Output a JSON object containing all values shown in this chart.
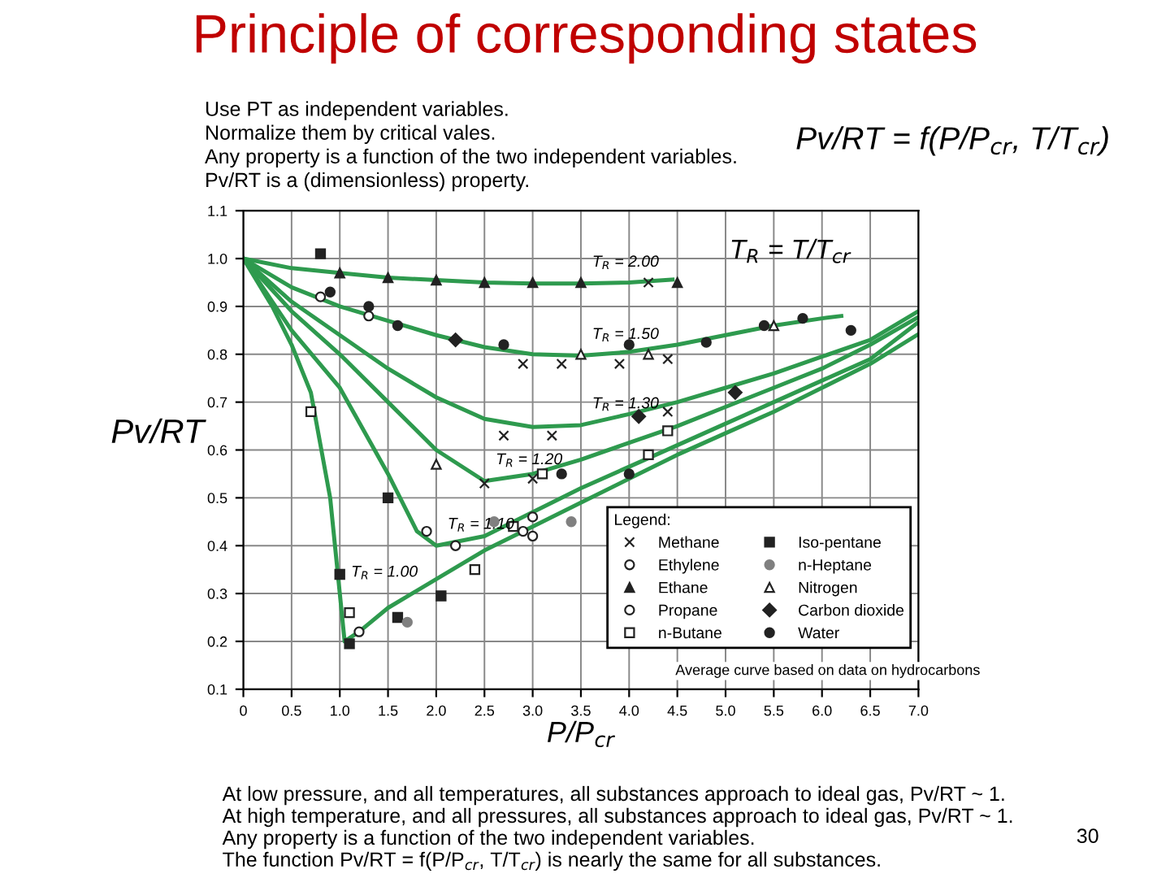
{
  "chart_data": {
    "type": "line",
    "title": "Principle of corresponding states",
    "xlabel": "P/P$_{cr}$",
    "ylabel": "Pv/RT",
    "xlim": [
      0,
      7.0
    ],
    "ylim": [
      0.1,
      1.1
    ],
    "xticks": [
      0,
      {
        "value": 0.5,
        "label": "0.5"
      },
      {
        "value": 1.0,
        "label": "1.0"
      },
      {
        "value": 1.5,
        "label": "1.5"
      },
      {
        "value": 2.0,
        "label": "2.0"
      },
      {
        "value": 2.5,
        "label": "2.5"
      },
      {
        "value": 3.0,
        "label": "3.0"
      },
      {
        "value": 3.5,
        "label": "3.5"
      },
      {
        "value": 4.0,
        "label": "4.0"
      },
      {
        "value": 4.5,
        "label": "4.5"
      },
      {
        "value": 5.0,
        "label": "5.0"
      },
      {
        "value": 5.5,
        "label": "5.5"
      },
      {
        "value": 6.0,
        "label": "6.0"
      },
      {
        "value": 6.5,
        "label": "6.5"
      },
      {
        "value": 7.0,
        "label": "7.0"
      }
    ],
    "yticks": [
      0.1,
      0.2,
      0.3,
      0.4,
      0.5,
      0.6,
      0.7,
      0.8,
      0.9,
      {
        "value": 1.0,
        "label": "1.0"
      },
      1.1
    ],
    "grid": true,
    "legend": "bottom right",
    "legend_title": "Legend:",
    "series": [
      {
        "marker": "none",
        "color": "#2e9a4e",
        "x": [
          0,
          0.5,
          1.0,
          1.5,
          2.0,
          2.5,
          3.0,
          3.5,
          4.0,
          4.45
        ],
        "values": [
          1.0,
          0.98,
          0.97,
          0.96,
          0.955,
          0.95,
          0.948,
          0.948,
          0.95,
          0.956
        ]
      },
      {
        "marker": "none",
        "color": "#2e9a4e",
        "x": [
          0,
          0.5,
          1.0,
          1.5,
          2.0,
          2.5,
          3.0,
          3.5,
          4.0,
          4.5,
          5.0,
          5.5,
          6.0,
          6.2
        ],
        "values": [
          1.0,
          0.94,
          0.9,
          0.87,
          0.84,
          0.815,
          0.8,
          0.797,
          0.805,
          0.82,
          0.84,
          0.86,
          0.875,
          0.88
        ]
      },
      {
        "marker": "none",
        "color": "#2e9a4e",
        "x": [
          0,
          0.5,
          1.0,
          1.5,
          2.0,
          2.5,
          3.0,
          3.5,
          4.0,
          4.5,
          5.0,
          5.5,
          6.0,
          6.5,
          7.0
        ],
        "values": [
          1.0,
          0.91,
          0.84,
          0.77,
          0.71,
          0.665,
          0.648,
          0.652,
          0.675,
          0.7,
          0.73,
          0.76,
          0.795,
          0.83,
          0.89
        ]
      },
      {
        "marker": "none",
        "color": "#2e9a4e",
        "x": [
          0,
          0.5,
          1.0,
          1.5,
          2.0,
          2.5,
          3.0,
          3.5,
          4.0,
          4.5,
          5.0,
          5.5,
          6.0,
          6.5,
          7.0
        ],
        "values": [
          1.0,
          0.89,
          0.8,
          0.7,
          0.6,
          0.535,
          0.55,
          0.58,
          0.615,
          0.65,
          0.69,
          0.73,
          0.77,
          0.82,
          0.878
        ]
      },
      {
        "marker": "none",
        "color": "#2e9a4e",
        "x": [
          0,
          0.5,
          1.0,
          1.5,
          1.8,
          2.0,
          2.5,
          3.0,
          3.5,
          4.0,
          4.5,
          5.0,
          5.5,
          6.0,
          6.5,
          7.0
        ],
        "values": [
          1.0,
          0.85,
          0.73,
          0.55,
          0.43,
          0.4,
          0.42,
          0.47,
          0.52,
          0.565,
          0.61,
          0.655,
          0.7,
          0.745,
          0.79,
          0.867
        ]
      },
      {
        "marker": "none",
        "color": "#2e9a4e",
        "x": [
          0,
          0.3,
          0.5,
          0.7,
          0.9,
          1.0,
          1.05,
          1.2,
          1.5,
          2.0,
          2.5,
          3.0,
          3.5,
          4.0,
          4.5,
          5.0,
          5.5,
          6.0,
          6.5,
          7.0
        ],
        "values": [
          1.0,
          0.9,
          0.82,
          0.72,
          0.5,
          0.3,
          0.2,
          0.22,
          0.27,
          0.33,
          0.39,
          0.44,
          0.49,
          0.54,
          0.59,
          0.635,
          0.68,
          0.73,
          0.78,
          0.842
        ]
      },
      {
        "type": "scatter",
        "name": "Methane",
        "marker": "cross",
        "color": "#222222",
        "x": [
          2.9,
          3.3,
          3.9,
          4.4,
          2.7,
          3.2,
          4.4,
          2.5,
          3.0,
          4.2
        ],
        "values": [
          0.78,
          0.78,
          0.78,
          0.79,
          0.63,
          0.63,
          0.68,
          0.53,
          0.54,
          0.95
        ]
      },
      {
        "type": "scatter",
        "name": "Ethylene",
        "marker": "circle_open",
        "color": "#222222",
        "x": [
          0.8,
          1.3,
          1.9,
          3.0,
          3.0
        ],
        "values": [
          0.92,
          0.88,
          0.43,
          0.46,
          0.42
        ]
      },
      {
        "type": "scatter",
        "name": "Ethane",
        "marker": "triangle",
        "color": "#222222",
        "x": [
          1.0,
          1.5,
          2.0,
          2.5,
          3.0,
          3.5,
          4.5
        ],
        "values": [
          0.97,
          0.96,
          0.955,
          0.95,
          0.95,
          0.95,
          0.95
        ]
      },
      {
        "type": "scatter",
        "name": "Propane",
        "marker": "circle_open",
        "color": "#222222",
        "x": [
          2.2,
          2.9,
          1.2
        ],
        "values": [
          0.4,
          0.43,
          0.22
        ]
      },
      {
        "type": "scatter",
        "name": "n-Butane",
        "marker": "square_open",
        "color": "#222222",
        "x": [
          0.7,
          1.1,
          2.4,
          2.8,
          3.1,
          4.4,
          4.2
        ],
        "values": [
          0.68,
          0.26,
          0.35,
          0.44,
          0.55,
          0.64,
          0.59
        ]
      },
      {
        "type": "scatter",
        "name": "Iso-pentane",
        "marker": "square",
        "color": "#222222",
        "x": [
          0.8,
          1.0,
          1.1,
          1.6,
          2.05,
          1.5
        ],
        "values": [
          1.01,
          0.34,
          0.195,
          0.25,
          0.295,
          0.5
        ]
      },
      {
        "type": "scatter",
        "name": "n-Heptane",
        "marker": "circle",
        "color": "#808080",
        "x": [
          1.7,
          2.6,
          3.4
        ],
        "values": [
          0.24,
          0.45,
          0.45
        ]
      },
      {
        "type": "scatter",
        "name": "Nitrogen",
        "marker": "triangle_open",
        "color": "#222222",
        "x": [
          3.5,
          4.2,
          5.5,
          2.0
        ],
        "values": [
          0.8,
          0.8,
          0.86,
          0.57
        ]
      },
      {
        "type": "scatter",
        "name": "Carbon dioxide",
        "marker": "diamond",
        "color": "#222222",
        "x": [
          2.2,
          4.1,
          5.1
        ],
        "values": [
          0.83,
          0.67,
          0.72
        ]
      },
      {
        "type": "scatter",
        "name": "Water",
        "marker": "circle",
        "color": "#222222",
        "x": [
          0.9,
          1.3,
          1.6,
          2.7,
          4.0,
          4.8,
          5.4,
          5.8,
          3.3,
          4.0,
          6.3
        ],
        "values": [
          0.93,
          0.9,
          0.86,
          0.82,
          0.82,
          0.825,
          0.86,
          0.875,
          0.55,
          0.55,
          0.85
        ]
      }
    ],
    "annotations": [
      {
        "text": "T$_{R}$ = 2.00",
        "x": 3.5,
        "y": 0.948
      },
      {
        "text": "T$_{R}$ = 1.50",
        "x": 3.5,
        "y": 0.797
      },
      {
        "text": "T$_{R}$ = 1.30",
        "x": 3.5,
        "y": 0.652
      },
      {
        "text": "T$_{R}$ = 1.20",
        "x": 2.5,
        "y": 0.535
      },
      {
        "text": "T$_{R}$ = 1.10",
        "x": 2.0,
        "y": 0.4
      },
      {
        "text": "T$_{R}$ = 1.00",
        "x": 1.0,
        "y": 0.3
      },
      "Use PT as independent variables.",
      "Normalize them by critical vales.",
      "Any property is a function of the two independent variables.",
      "Pv/RT is a (dimensionless) property.",
      "Pv/RT = f(P/P$_{cr}$, T/T$_{cr}$)",
      "T$_{R}$ = T/T$_{cr}$",
      "Average curve based on data on hydrocarbons",
      "At low pressure, and all temperatures, all substances approach to ideal gas, Pv/RT ~ 1.",
      "At high temperature, and all pressures, all substances approach to ideal gas, Pv/RT ~ 1.",
      "Any property is a function of the two independent variables.",
      "The function Pv/RT = f(P/P$_{cr}$, T/T$_{cr}$) is nearly the same for all substances.",
      "30"
    ]
  }
}
